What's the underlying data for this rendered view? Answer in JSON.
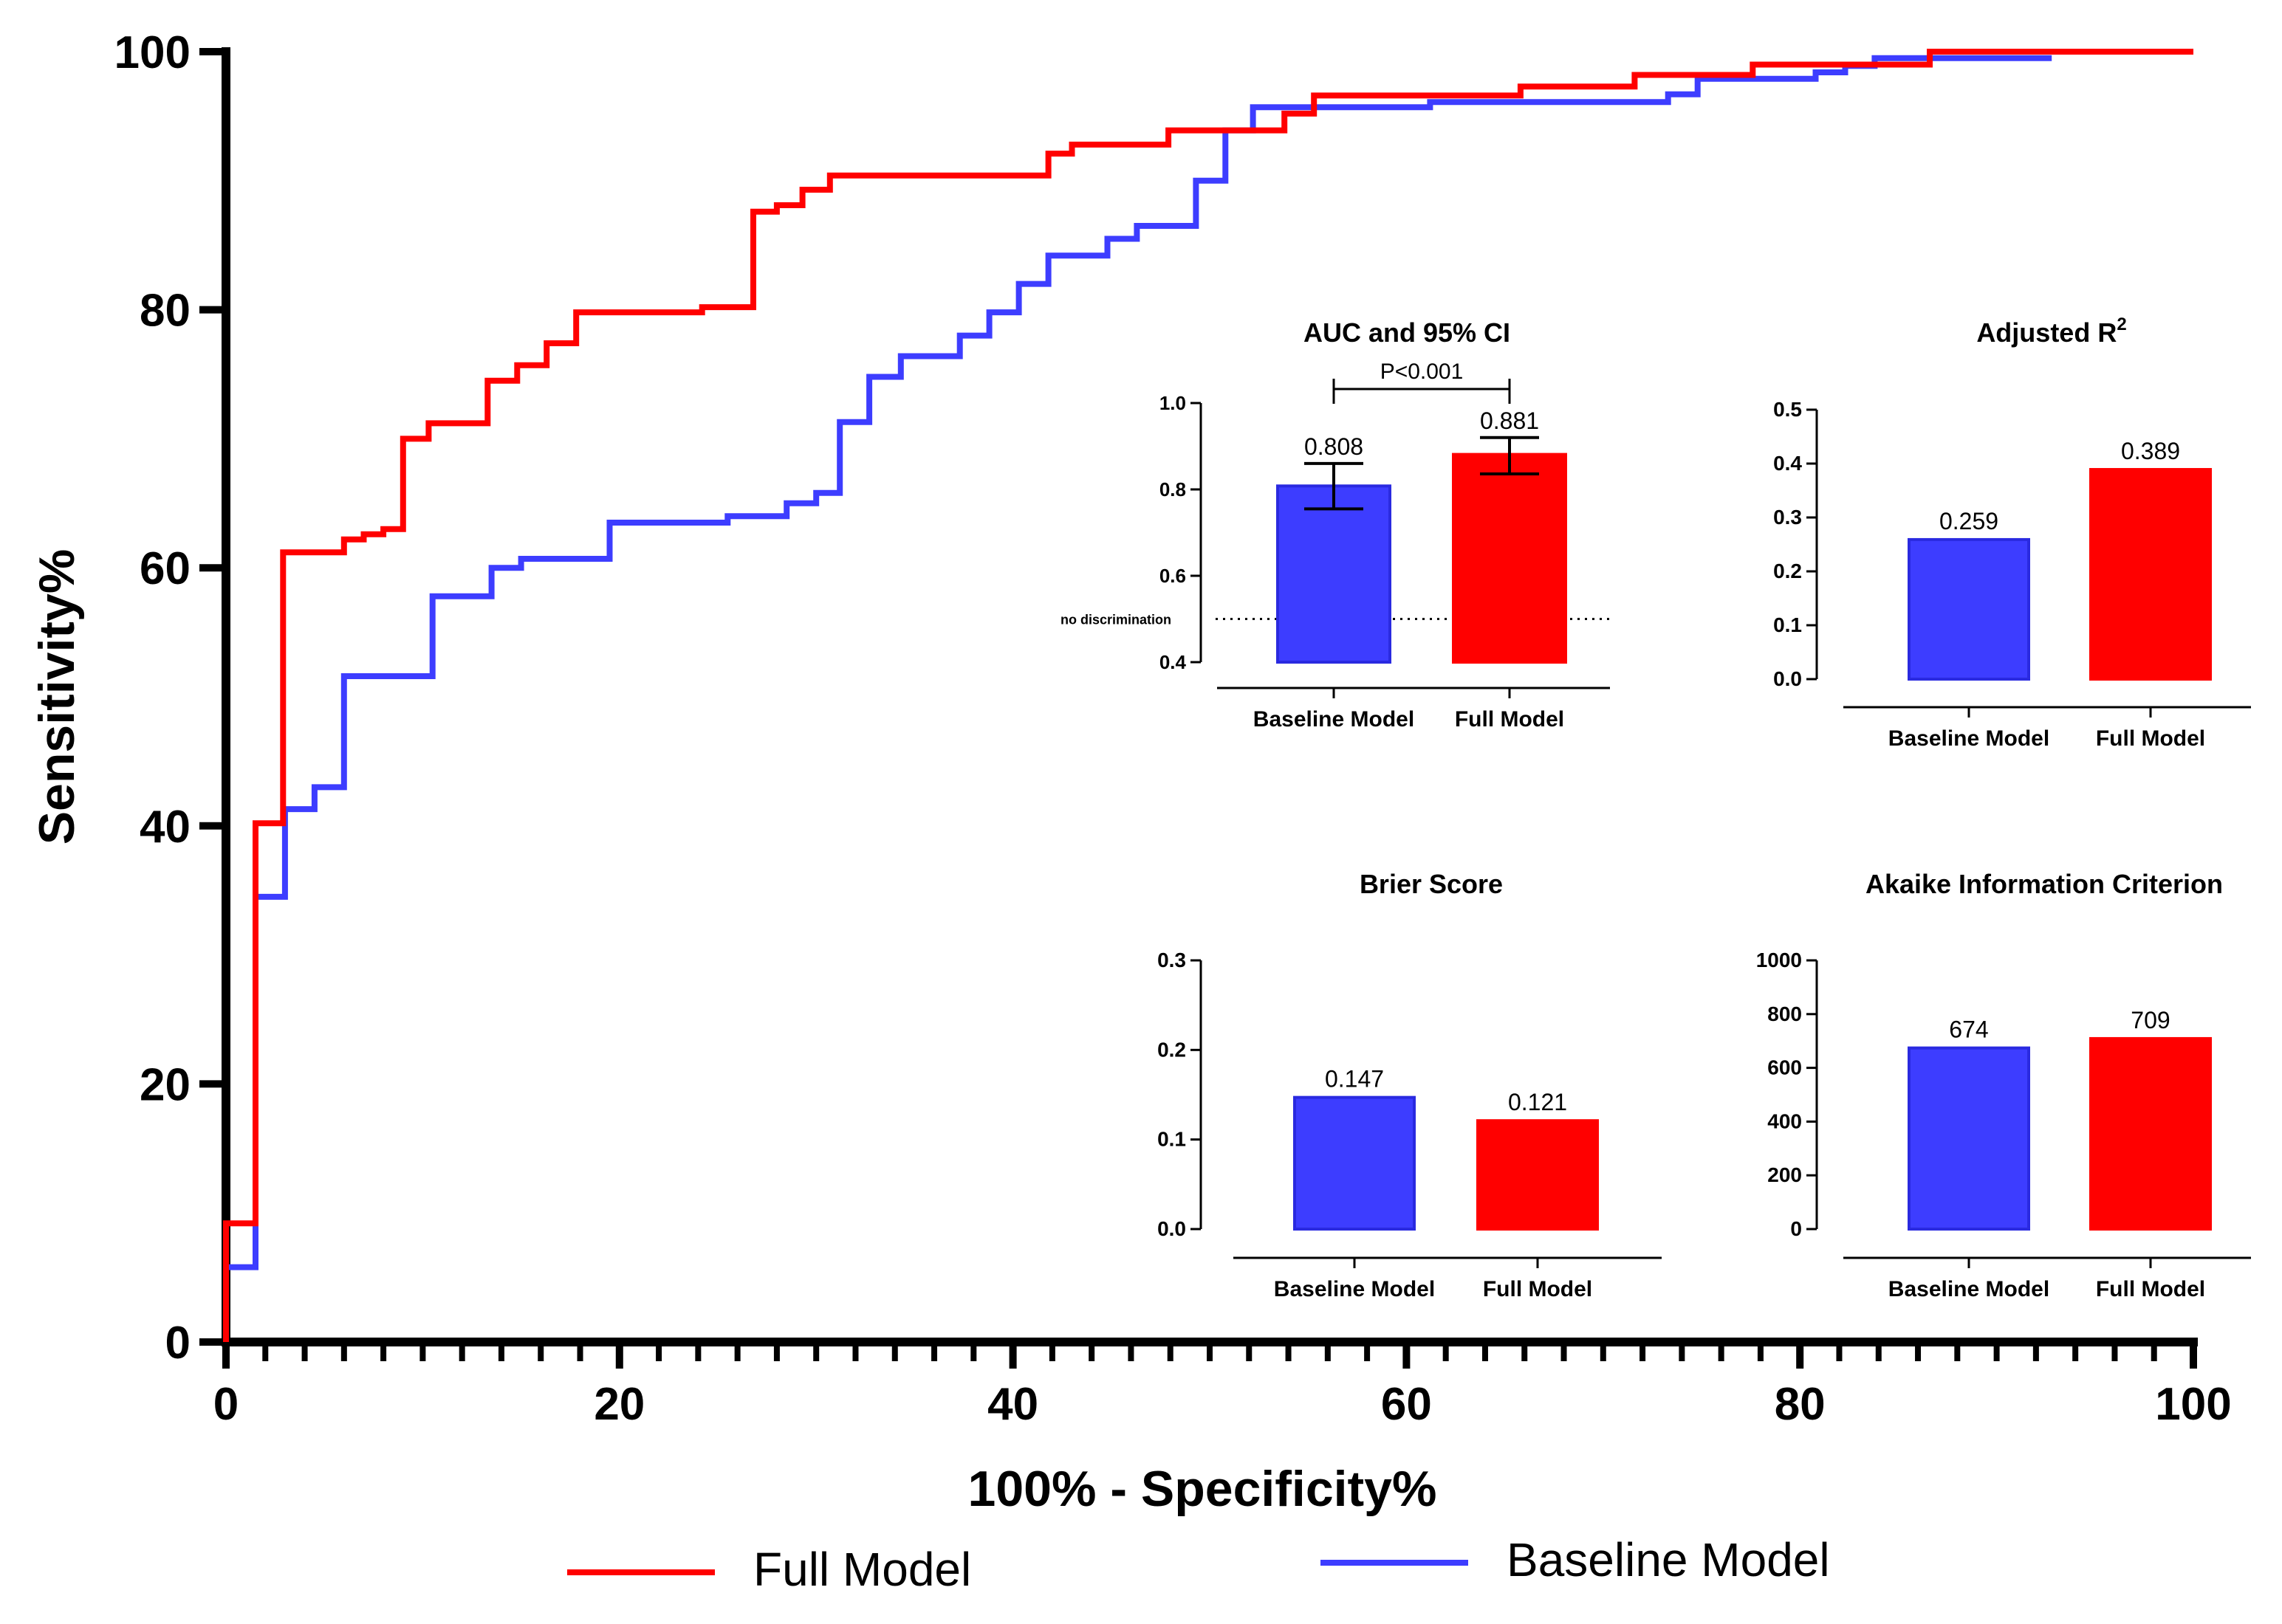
{
  "colors": {
    "full": "#ff0000",
    "baseline": "#3d3dff",
    "axis": "#000000"
  },
  "legend": {
    "full": "Full Model",
    "baseline": "Baseline Model"
  },
  "chart_data": [
    {
      "type": "line",
      "xlabel": "100% - Specificity%",
      "ylabel": "Sensitivity%",
      "xlim": [
        0,
        100
      ],
      "ylim": [
        0,
        100
      ],
      "xticks": [
        "0",
        "20",
        "40",
        "60",
        "80",
        "100"
      ],
      "yticks": [
        "0",
        "20",
        "40",
        "60",
        "80",
        "100"
      ],
      "legend_position": "bottom",
      "series": [
        {
          "name": "Full Model",
          "color": "#ff0000",
          "points": [
            [
              0,
              0
            ],
            [
              0,
              9.2
            ],
            [
              1.5,
              9.2
            ],
            [
              1.5,
              40.2
            ],
            [
              2.9,
              40.2
            ],
            [
              2.9,
              61.2
            ],
            [
              6,
              61.2
            ],
            [
              6,
              62.2
            ],
            [
              7,
              62.2
            ],
            [
              7,
              62.6
            ],
            [
              8,
              62.6
            ],
            [
              8,
              63
            ],
            [
              9,
              63
            ],
            [
              9,
              70
            ],
            [
              10.3,
              70
            ],
            [
              10.3,
              71.2
            ],
            [
              13.3,
              71.2
            ],
            [
              13.3,
              74.5
            ],
            [
              14.8,
              74.5
            ],
            [
              14.8,
              75.7
            ],
            [
              16.3,
              75.7
            ],
            [
              16.3,
              77.4
            ],
            [
              17.8,
              77.4
            ],
            [
              17.8,
              79.8
            ],
            [
              24.2,
              79.8
            ],
            [
              24.2,
              80.2
            ],
            [
              26.8,
              80.2
            ],
            [
              26.8,
              87.6
            ],
            [
              28,
              87.6
            ],
            [
              28,
              88.1
            ],
            [
              29.3,
              88.1
            ],
            [
              29.3,
              89.3
            ],
            [
              30.7,
              89.3
            ],
            [
              30.7,
              90.4
            ],
            [
              41.8,
              90.4
            ],
            [
              41.8,
              92.1
            ],
            [
              43,
              92.1
            ],
            [
              43,
              92.8
            ],
            [
              47.9,
              92.8
            ],
            [
              47.9,
              93.9
            ],
            [
              53.8,
              93.9
            ],
            [
              53.8,
              95.2
            ],
            [
              55.3,
              95.2
            ],
            [
              55.3,
              96.6
            ],
            [
              65.8,
              96.6
            ],
            [
              65.8,
              97.3
            ],
            [
              71.6,
              97.3
            ],
            [
              71.6,
              98.2
            ],
            [
              77.6,
              98.2
            ],
            [
              77.6,
              99
            ],
            [
              86.6,
              99
            ],
            [
              86.6,
              100
            ],
            [
              100,
              100
            ]
          ]
        },
        {
          "name": "Baseline Model",
          "color": "#3d3dff",
          "points": [
            [
              0,
              0
            ],
            [
              0,
              5.8
            ],
            [
              1.5,
              5.8
            ],
            [
              1.5,
              34.5
            ],
            [
              3,
              34.5
            ],
            [
              3,
              41.3
            ],
            [
              4.5,
              41.3
            ],
            [
              4.5,
              43
            ],
            [
              6,
              43
            ],
            [
              6,
              51.6
            ],
            [
              10.5,
              51.6
            ],
            [
              10.5,
              57.8
            ],
            [
              13.5,
              57.8
            ],
            [
              13.5,
              60
            ],
            [
              15,
              60
            ],
            [
              15,
              60.7
            ],
            [
              19.5,
              60.7
            ],
            [
              19.5,
              63.5
            ],
            [
              25.5,
              63.5
            ],
            [
              25.5,
              64
            ],
            [
              28.5,
              64
            ],
            [
              28.5,
              65
            ],
            [
              30,
              65
            ],
            [
              30,
              65.8
            ],
            [
              31.2,
              65.8
            ],
            [
              31.2,
              71.3
            ],
            [
              32.7,
              71.3
            ],
            [
              32.7,
              74.8
            ],
            [
              34.3,
              74.8
            ],
            [
              34.3,
              76.4
            ],
            [
              37.3,
              76.4
            ],
            [
              37.3,
              78
            ],
            [
              38.8,
              78
            ],
            [
              38.8,
              79.8
            ],
            [
              40.3,
              79.8
            ],
            [
              40.3,
              82
            ],
            [
              41.8,
              82
            ],
            [
              41.8,
              84.2
            ],
            [
              44.8,
              84.2
            ],
            [
              44.8,
              85.5
            ],
            [
              46.3,
              85.5
            ],
            [
              46.3,
              86.5
            ],
            [
              49.3,
              86.5
            ],
            [
              49.3,
              90
            ],
            [
              50.8,
              90
            ],
            [
              50.8,
              93.9
            ],
            [
              52.2,
              93.9
            ],
            [
              52.2,
              95.7
            ],
            [
              61.2,
              95.7
            ],
            [
              61.2,
              96.1
            ],
            [
              73.3,
              96.1
            ],
            [
              73.3,
              96.7
            ],
            [
              74.8,
              96.7
            ],
            [
              74.8,
              97.9
            ],
            [
              80.8,
              97.9
            ],
            [
              80.8,
              98.4
            ],
            [
              82.3,
              98.4
            ],
            [
              82.3,
              98.9
            ],
            [
              83.8,
              98.9
            ],
            [
              83.8,
              99.5
            ],
            [
              92.8,
              99.5
            ]
          ]
        }
      ]
    },
    {
      "type": "bar",
      "title": "AUC and 95% CI",
      "categories": [
        "Baseline Model",
        "Full Model"
      ],
      "values": [
        0.808,
        0.881
      ],
      "value_labels": [
        "0.808",
        "0.881"
      ],
      "ci_low": [
        0.755,
        0.836
      ],
      "ci_high": [
        0.86,
        0.92
      ],
      "ylim": [
        0.4,
        1.0
      ],
      "yticks": [
        "0.4",
        "0.6",
        "0.8",
        "1.0"
      ],
      "reference_line": {
        "value": 0.5,
        "label": "no discrimination"
      },
      "significance": "P<0.001"
    },
    {
      "type": "bar",
      "title": "Adjusted R",
      "title_superscript": "2",
      "categories": [
        "Baseline Model",
        "Full Model"
      ],
      "values": [
        0.259,
        0.389
      ],
      "value_labels": [
        "0.259",
        "0.389"
      ],
      "ylim": [
        0,
        0.5
      ],
      "yticks": [
        "0.0",
        "0.1",
        "0.2",
        "0.3",
        "0.4",
        "0.5"
      ]
    },
    {
      "type": "bar",
      "title": "Brier  Score",
      "categories": [
        "Baseline Model",
        "Full Model"
      ],
      "values": [
        0.147,
        0.121
      ],
      "value_labels": [
        "0.147",
        "0.121"
      ],
      "ylim": [
        0,
        0.3
      ],
      "yticks": [
        "0.0",
        "0.1",
        "0.2",
        "0.3"
      ]
    },
    {
      "type": "bar",
      "title": "Akaike Information Criterion",
      "categories": [
        "Baseline Model",
        "Full Model"
      ],
      "values": [
        674,
        709
      ],
      "value_labels": [
        "674",
        "709"
      ],
      "ylim": [
        0,
        1000
      ],
      "yticks": [
        "0",
        "200",
        "400",
        "600",
        "800",
        "1000"
      ]
    }
  ]
}
